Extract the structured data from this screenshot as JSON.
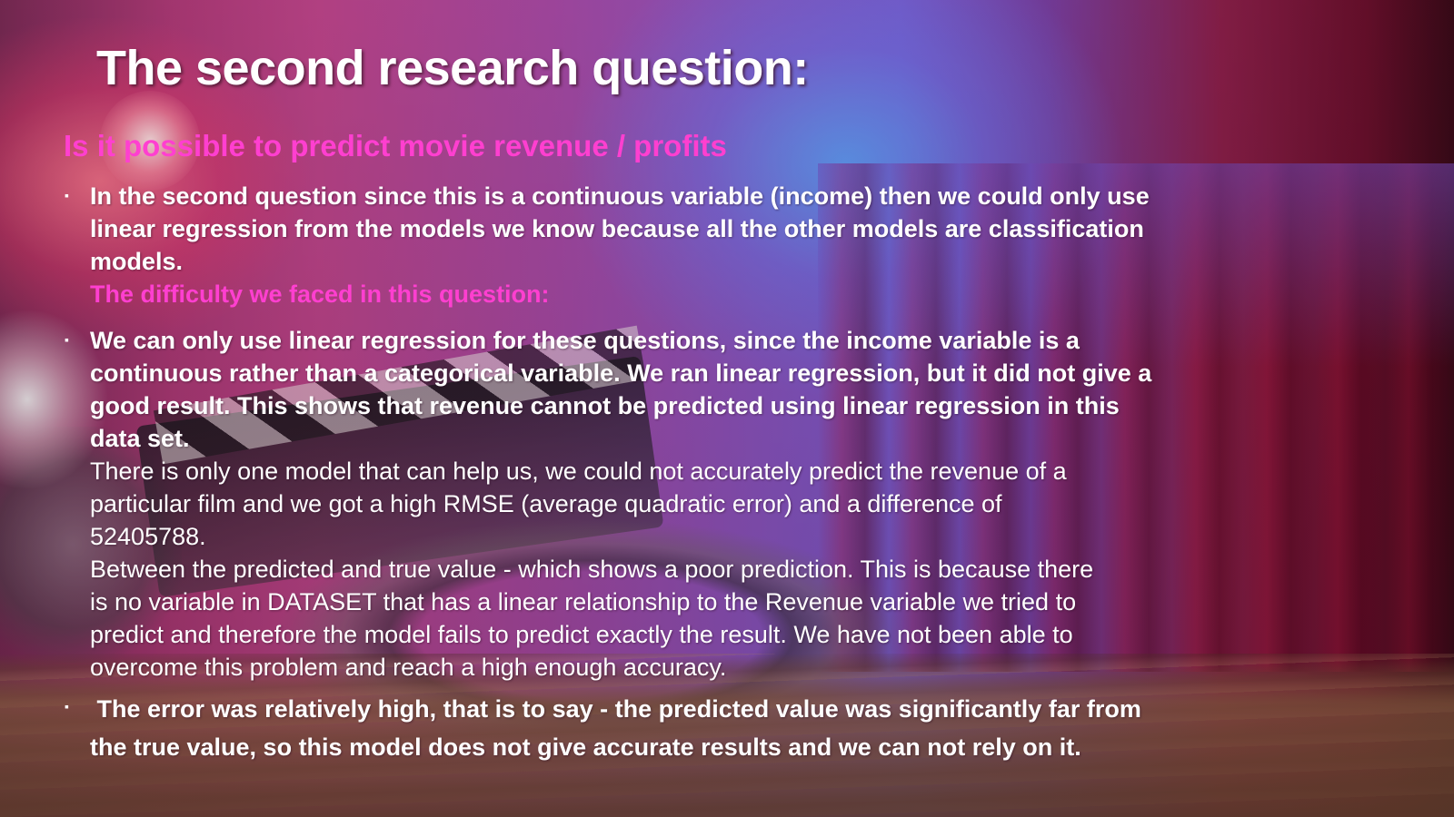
{
  "slide": {
    "title": "The second research question:",
    "subtitle": "Is it possible to predict movie revenue / profits",
    "bullet_glyph": "▪",
    "block1": {
      "lines": [
        "In the second question since this is a continuous variable (income) then we could only use",
        "linear regression from the models we know because all the other models are classification",
        "models."
      ],
      "difficulty_heading": "The difficulty we faced in this question:"
    },
    "block2": {
      "bold_lines": [
        "We can only use linear regression for these questions, since the income variable is a",
        "continuous rather than a categorical variable. We ran linear regression, but it did not give a",
        "good result. This shows that revenue cannot be predicted using linear regression in this",
        "data set."
      ],
      "regular_lines": [
        "There is only one model that can help us, we could not accurately predict the revenue of a",
        "particular film and we got a high RMSE (average quadratic error) and a difference of",
        "52405788.",
        "Between the predicted and true value - which shows a poor prediction. This is because there",
        "is no variable in DATASET that has a linear relationship to the Revenue variable we tried to",
        "predict and therefore the model fails to predict exactly the result. We have not been able to",
        "overcome this problem and reach a high enough accuracy."
      ]
    },
    "block3": {
      "lines": [
        " The error was relatively high, that is to say - the predicted value was significantly far from",
        "the true value, so this model does not give accurate results and we can not rely on it."
      ]
    },
    "colors": {
      "title": "#ffffff",
      "subtitle": "#ff3fd0",
      "body": "#ffffff"
    }
  }
}
